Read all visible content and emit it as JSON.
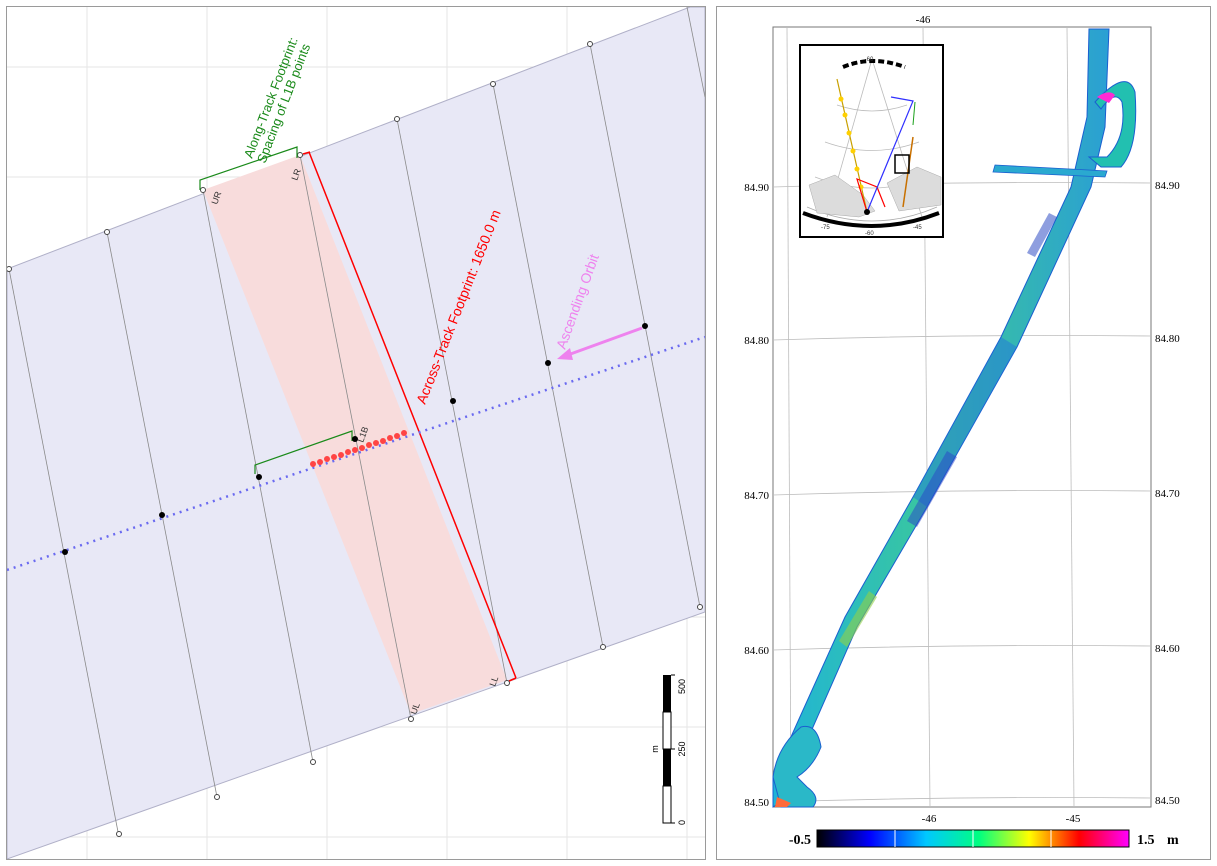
{
  "left_map": {
    "along_track_label": [
      "Along-Track Footprint:",
      "Spacing of L1B points"
    ],
    "across_track_label": "Across-Track Footprint: 1650.0 m",
    "ascending_label": "Ascending Orbit",
    "corner_labels": {
      "ur": "UR",
      "lr": "LR",
      "ul": "UL",
      "ll": "LL"
    },
    "l1b_label": "L1B",
    "scale_bar": {
      "unit": "m",
      "ticks": [
        "0",
        "250",
        "500"
      ]
    },
    "colors": {
      "swath_fill": "#e8e8f6",
      "footprint_fill": "#f8dcdc",
      "track": "#6a6af0",
      "footprint_line": "#ff0000",
      "along_track": "#1a8a1a",
      "ascending": "#ee82ee"
    }
  },
  "right_map": {
    "lat_labels_left": [
      "84.90",
      "84.80",
      "84.70",
      "84.60",
      "84.50"
    ],
    "lat_labels_right": [
      "84.90",
      "84.80",
      "84.70",
      "84.60",
      "84.50"
    ],
    "lon_labels_top": [
      "-46"
    ],
    "lon_labels_bottom": [
      "-46",
      "-45"
    ],
    "colorbar": {
      "min_label": "-0.5",
      "max_label": "1.5",
      "unit": "m",
      "colors": [
        "#000000",
        "#0000ff",
        "#00c8ff",
        "#00ff80",
        "#ffff00",
        "#ff0000",
        "#ff00ff"
      ]
    },
    "inset": {
      "lon_labels": [
        "-75",
        "-60",
        "-45"
      ],
      "top_label": "-60"
    }
  }
}
